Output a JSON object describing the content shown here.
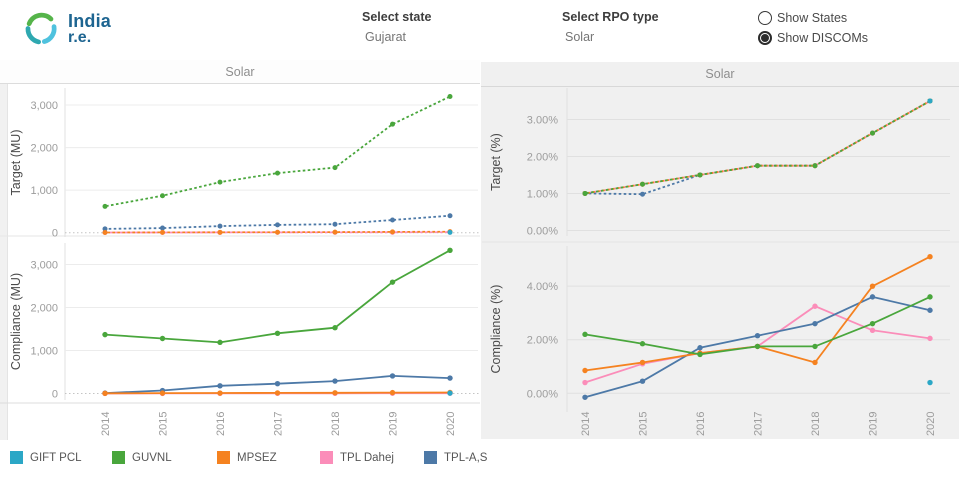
{
  "header": {
    "logo_title": "India",
    "logo_subtitle": "r.e.",
    "select_state_label": "Select state",
    "select_state_value": "Gujarat",
    "select_rpo_label": "Select RPO type",
    "select_rpo_value": "Solar",
    "radio_options": [
      "Show States",
      "Show DISCOMs"
    ],
    "radio_selected": "Show DISCOMs"
  },
  "panels": {
    "left_title": "Solar",
    "right_title": "Solar"
  },
  "legend": {
    "items": [
      {
        "label": "GIFT PCL",
        "color": "#2BA7C6"
      },
      {
        "label": "GUVNL",
        "color": "#49A63C"
      },
      {
        "label": "MPSEZ",
        "color": "#F58220"
      },
      {
        "label": "TPL Dahej",
        "color": "#FB8DB9"
      },
      {
        "label": "TPL-A,S",
        "color": "#4D79A7"
      }
    ]
  },
  "chart_data": [
    {
      "id": "target_mu",
      "type": "line",
      "title": "Solar",
      "ylabel": "Target (MU)",
      "line_style": "dashed",
      "x": [
        "2014",
        "2015",
        "2016",
        "2017",
        "2018",
        "2019",
        "2020"
      ],
      "ylim": [
        -100,
        3400
      ],
      "yticks": [
        [
          0,
          "0"
        ],
        [
          1000,
          "1,000"
        ],
        [
          2000,
          "2,000"
        ],
        [
          3000,
          "3,000"
        ]
      ],
      "series": [
        {
          "name": "TPL Dahej",
          "color": "#FB8DB9",
          "values": [
            5,
            6,
            7,
            8,
            9,
            10,
            12
          ]
        },
        {
          "name": "TPL-A,S",
          "color": "#4D79A7",
          "values": [
            90,
            110,
            155,
            185,
            200,
            300,
            400
          ]
        },
        {
          "name": "MPSEZ",
          "color": "#F58220",
          "values": [
            5,
            8,
            10,
            12,
            15,
            20,
            25
          ]
        },
        {
          "name": "GUVNL",
          "color": "#49A63C",
          "values": [
            620,
            870,
            1190,
            1400,
            1530,
            2550,
            3200
          ]
        },
        {
          "name": "GIFT PCL",
          "color": "#2BA7C6",
          "values": [
            null,
            null,
            null,
            null,
            null,
            null,
            10
          ]
        }
      ]
    },
    {
      "id": "compliance_mu",
      "type": "line",
      "title": "Solar",
      "ylabel": "Compliance (MU)",
      "line_style": "solid",
      "x": [
        "2014",
        "2015",
        "2016",
        "2017",
        "2018",
        "2019",
        "2020"
      ],
      "ylim": [
        -150,
        3500
      ],
      "yticks": [
        [
          0,
          "0"
        ],
        [
          1000,
          "1,000"
        ],
        [
          2000,
          "2,000"
        ],
        [
          3000,
          "3,000"
        ]
      ],
      "series": [
        {
          "name": "TPL Dahej",
          "color": "#FB8DB9",
          "values": [
            2,
            3,
            4,
            5,
            6,
            7,
            8
          ]
        },
        {
          "name": "TPL-A,S",
          "color": "#4D79A7",
          "values": [
            10,
            70,
            180,
            230,
            290,
            410,
            360
          ]
        },
        {
          "name": "MPSEZ",
          "color": "#F58220",
          "values": [
            5,
            10,
            12,
            15,
            18,
            22,
            25
          ]
        },
        {
          "name": "GUVNL",
          "color": "#49A63C",
          "values": [
            1370,
            1280,
            1190,
            1400,
            1530,
            2590,
            3330
          ]
        },
        {
          "name": "GIFT PCL",
          "color": "#2BA7C6",
          "values": [
            null,
            null,
            null,
            null,
            null,
            null,
            10
          ]
        }
      ]
    },
    {
      "id": "target_pct",
      "type": "line",
      "title": "Solar",
      "ylabel": "Target (%)",
      "line_style": "dashed",
      "x": [
        "2014",
        "2015",
        "2016",
        "2017",
        "2018",
        "2019",
        "2020"
      ],
      "ylim": [
        -0.15,
        3.85
      ],
      "yticks": [
        [
          0,
          "0.00%"
        ],
        [
          1,
          "1.00%"
        ],
        [
          2,
          "2.00%"
        ],
        [
          3,
          "3.00%"
        ]
      ],
      "series": [
        {
          "name": "TPL Dahej",
          "color": "#FB8DB9",
          "values": [
            1.0,
            1.25,
            1.5,
            1.75,
            1.75,
            2.63,
            3.5
          ]
        },
        {
          "name": "TPL-A,S",
          "color": "#4D79A7",
          "values": [
            1.0,
            0.98,
            1.5,
            1.75,
            1.75,
            2.63,
            3.5
          ]
        },
        {
          "name": "MPSEZ",
          "color": "#F58220",
          "values": [
            1.0,
            1.25,
            1.5,
            1.75,
            1.75,
            2.63,
            3.5
          ]
        },
        {
          "name": "GUVNL",
          "color": "#49A63C",
          "values": [
            1.0,
            1.25,
            1.5,
            1.75,
            1.75,
            2.63,
            3.5
          ]
        },
        {
          "name": "GIFT PCL",
          "color": "#2BA7C6",
          "values": [
            null,
            null,
            null,
            null,
            null,
            null,
            3.5
          ]
        }
      ]
    },
    {
      "id": "compliance_pct",
      "type": "line",
      "title": "Solar",
      "ylabel": "Compliance (%)",
      "line_style": "solid",
      "x": [
        "2014",
        "2015",
        "2016",
        "2017",
        "2018",
        "2019",
        "2020"
      ],
      "ylim": [
        -0.7,
        5.5
      ],
      "yticks": [
        [
          0,
          "0.00%"
        ],
        [
          2,
          "2.00%"
        ],
        [
          4,
          "4.00%"
        ]
      ],
      "series": [
        {
          "name": "TPL Dahej",
          "color": "#FB8DB9",
          "values": [
            0.4,
            1.1,
            1.5,
            1.75,
            3.25,
            2.35,
            2.05
          ]
        },
        {
          "name": "TPL-A,S",
          "color": "#4D79A7",
          "values": [
            -0.15,
            0.45,
            1.7,
            2.15,
            2.6,
            3.6,
            3.1
          ]
        },
        {
          "name": "MPSEZ",
          "color": "#F58220",
          "values": [
            0.85,
            1.15,
            1.5,
            1.75,
            1.15,
            4.0,
            5.1
          ]
        },
        {
          "name": "GUVNL",
          "color": "#49A63C",
          "values": [
            2.2,
            1.85,
            1.45,
            1.75,
            1.75,
            2.6,
            3.6
          ]
        },
        {
          "name": "GIFT PCL",
          "color": "#2BA7C6",
          "values": [
            null,
            null,
            null,
            null,
            null,
            null,
            0.4
          ]
        }
      ]
    }
  ]
}
